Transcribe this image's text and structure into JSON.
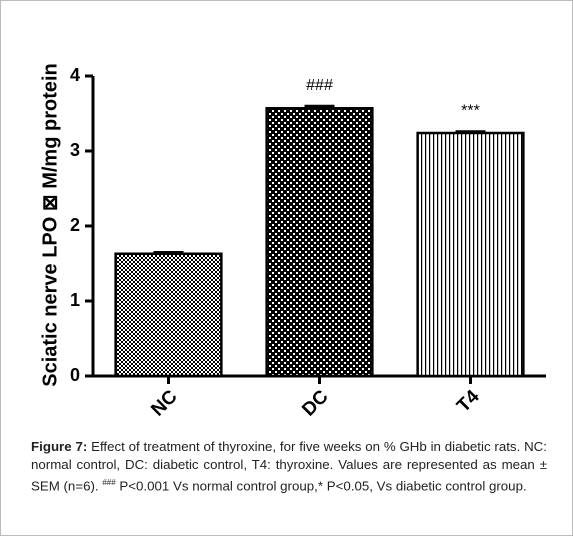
{
  "chart_data": {
    "type": "bar",
    "ylabel": "Sciatic nerve  LPO ⊠ M/mg protein",
    "categories": [
      "NC",
      "DC",
      "T4"
    ],
    "series": [
      {
        "name": "LPO",
        "color": "#000000",
        "values": [
          1.63,
          3.57,
          3.24
        ],
        "errors": [
          0.02,
          0.03,
          0.02
        ]
      }
    ],
    "annotations": [
      null,
      "###",
      "***"
    ],
    "ylim": [
      0,
      4
    ],
    "yticks": [
      0,
      1,
      2,
      3,
      4
    ],
    "grid": false
  },
  "caption": {
    "label": "Figure 7:",
    "text": "Effect of treatment of thyroxine, for five weeks on % GHb in diabetic rats. NC: normal control, DC: diabetic control, T4: thyroxine. Values are represented as mean ± SEM (n=6).",
    "superscript": "###",
    "text_after": "P<0.001 Vs normal control group,* P<0.05, Vs diabetic control group."
  }
}
